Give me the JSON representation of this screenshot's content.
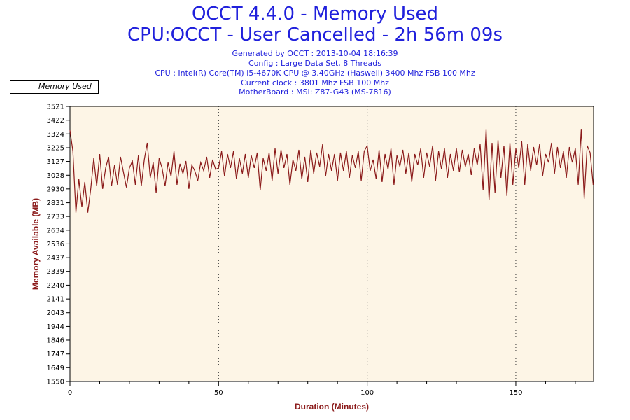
{
  "header": {
    "title_line1": "OCCT 4.4.0 - Memory Used",
    "title_line2": "CPU:OCCT - User Cancelled - 2h 56m 09s",
    "generated": "Generated by OCCT : 2013-10-04 18:16:39",
    "config": "Config : Large Data Set, 8 Threads",
    "cpu": "CPU : Intel(R) Core(TM) i5-4670K CPU @ 3.40GHz (Haswell) 3400 Mhz FSB 100 Mhz",
    "clock": "Current clock : 3801 Mhz FSB 100 Mhz",
    "motherboard": "MotherBoard : MSI: Z87-G43 (MS-7816)"
  },
  "colors": {
    "line": "#8b1a1a",
    "plot_bg": "#fdf5e6",
    "text_blue": "#2020dc",
    "axis_label": "#8b1a1a"
  },
  "chart_data": {
    "type": "line",
    "title": "OCCT 4.4.0 - Memory Used",
    "xlabel": "Duration (Minutes)",
    "ylabel": "Memory Available (MB)",
    "xlim": [
      0,
      176.15
    ],
    "ylim": [
      1550,
      3521
    ],
    "x_ticks": [
      0,
      50,
      100,
      150
    ],
    "y_ticks": [
      1550,
      1649,
      1747,
      1846,
      1944,
      2043,
      2141,
      2240,
      2339,
      2437,
      2536,
      2634,
      2733,
      2831,
      2930,
      3028,
      3127,
      3225,
      3324,
      3422,
      3521
    ],
    "grid": "vertical dotted lines at major x ticks",
    "legend": {
      "position": "top-left",
      "entries": [
        "Memory Used"
      ]
    },
    "series": [
      {
        "name": "Memory Used",
        "x": [
          0,
          1,
          2,
          3,
          4,
          5,
          6,
          7,
          8,
          9,
          10,
          11,
          12,
          13,
          14,
          15,
          16,
          17,
          18,
          19,
          20,
          21,
          22,
          23,
          24,
          25,
          26,
          27,
          28,
          29,
          30,
          31,
          32,
          33,
          34,
          35,
          36,
          37,
          38,
          39,
          40,
          41,
          42,
          43,
          44,
          45,
          46,
          47,
          48,
          49,
          50,
          51,
          52,
          53,
          54,
          55,
          56,
          57,
          58,
          59,
          60,
          61,
          62,
          63,
          64,
          65,
          66,
          67,
          68,
          69,
          70,
          71,
          72,
          73,
          74,
          75,
          76,
          77,
          78,
          79,
          80,
          81,
          82,
          83,
          84,
          85,
          86,
          87,
          88,
          89,
          90,
          91,
          92,
          93,
          94,
          95,
          96,
          97,
          98,
          99,
          100,
          101,
          102,
          103,
          104,
          105,
          106,
          107,
          108,
          109,
          110,
          111,
          112,
          113,
          114,
          115,
          116,
          117,
          118,
          119,
          120,
          121,
          122,
          123,
          124,
          125,
          126,
          127,
          128,
          129,
          130,
          131,
          132,
          133,
          134,
          135,
          136,
          137,
          138,
          139,
          140,
          141,
          142,
          143,
          144,
          145,
          146,
          147,
          148,
          149,
          150,
          151,
          152,
          153,
          154,
          155,
          156,
          157,
          158,
          159,
          160,
          161,
          162,
          163,
          164,
          165,
          166,
          167,
          168,
          169,
          170,
          171,
          172,
          173,
          174,
          175,
          176
        ],
        "values": [
          3350,
          3200,
          2760,
          3000,
          2800,
          2980,
          2760,
          2930,
          3150,
          2950,
          3180,
          2930,
          3080,
          3160,
          2950,
          3100,
          2960,
          3160,
          3050,
          2940,
          3080,
          3130,
          2960,
          3170,
          2950,
          3140,
          3260,
          3010,
          3120,
          2900,
          3150,
          3080,
          2950,
          3120,
          3020,
          3200,
          2960,
          3110,
          3040,
          3130,
          2930,
          3100,
          3060,
          2990,
          3120,
          3060,
          3160,
          3010,
          3140,
          3070,
          3080,
          3200,
          3020,
          3180,
          3080,
          3200,
          3000,
          3150,
          3040,
          3180,
          3010,
          3170,
          3080,
          3190,
          2920,
          3150,
          3060,
          3190,
          2990,
          3220,
          3040,
          3210,
          3080,
          3180,
          2960,
          3140,
          3060,
          3210,
          3000,
          3160,
          2980,
          3210,
          3040,
          3190,
          3090,
          3250,
          3020,
          3180,
          3060,
          3180,
          2990,
          3190,
          3060,
          3200,
          3010,
          3170,
          3080,
          3200,
          2990,
          3200,
          3240,
          3060,
          3140,
          3000,
          3210,
          2980,
          3180,
          3070,
          3220,
          2960,
          3170,
          3090,
          3210,
          3040,
          3190,
          2980,
          3180,
          3100,
          3220,
          3010,
          3190,
          3090,
          3240,
          2990,
          3200,
          3070,
          3220,
          3010,
          3180,
          3060,
          3220,
          3050,
          3210,
          3090,
          3180,
          3030,
          3220,
          3100,
          3250,
          2920,
          3360,
          2850,
          3260,
          2900,
          3280,
          3010,
          3240,
          2880,
          3260,
          2960,
          3220,
          3080,
          3270,
          2960,
          3250,
          3060,
          3230,
          3100,
          3250,
          3020,
          3180,
          3120,
          3260,
          3040,
          3230,
          3080,
          3200,
          3010,
          3230,
          3120,
          3220,
          2960,
          3360,
          2860,
          3240,
          3190,
          2960
        ]
      }
    ]
  }
}
